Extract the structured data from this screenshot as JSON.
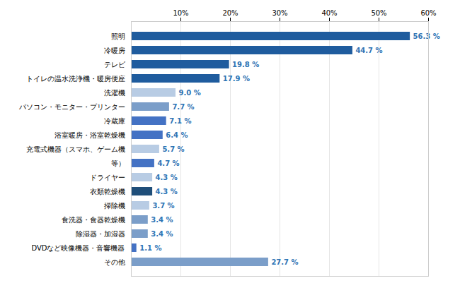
{
  "chart_data": {
    "type": "bar",
    "orientation": "horizontal",
    "categories": [
      "その他",
      "DVDなど映像機器・音響機器",
      "除湿器・加湿器",
      "食洗器・食器乾燥機",
      "掃除機",
      "衣類乾燥機",
      "ドライヤー",
      "等）",
      "充電式機器（スマホ、ゲーム機",
      "浴室暖房・浴室乾燥機",
      "冷蔵庫",
      "パソコン・モニター・プリンター",
      "洗濯機",
      "トイレの温水洗浄機・暖房便座",
      "テレビ",
      "冷暖房",
      "照明"
    ],
    "values": [
      27.7,
      1.1,
      3.4,
      3.4,
      3.7,
      4.3,
      4.3,
      4.7,
      5.7,
      6.4,
      7.1,
      7.7,
      9.0,
      17.9,
      19.8,
      44.7,
      56.3
    ],
    "value_labels": [
      "27.7 %",
      "1.1 %",
      "3.4 %",
      "3.4 %",
      "3.7 %",
      "4.3 %",
      "4.3 %",
      "4.7 %",
      "5.7 %",
      "6.4 %",
      "7.1 %",
      "7.7 %",
      "9.0 %",
      "17.9 %",
      "19.8 %",
      "44.7 %",
      "56.3 %"
    ],
    "colors": [
      "#7B9EC9",
      "#4472C4",
      "#7B9EC9",
      "#7B9EC9",
      "#B8CCE4",
      "#1F4E79",
      "#B8CCE4",
      "#4472C4",
      "#B8CCE4",
      "#4472C4",
      "#4472C4",
      "#7B9EC9",
      "#B8CCE4",
      "#1F5C9E",
      "#1F5C9E",
      "#1F5C9E",
      "#1F5C9E"
    ],
    "xlim": [
      0,
      60
    ],
    "xticks": [
      {
        "value": 10,
        "label": "10%"
      },
      {
        "value": 20,
        "label": "20%"
      },
      {
        "value": 30,
        "label": "30%"
      },
      {
        "value": 40,
        "label": "40%"
      },
      {
        "value": 50,
        "label": "50%"
      },
      {
        "value": 60,
        "label": "60%"
      }
    ],
    "grid": true,
    "data_labels": true
  }
}
